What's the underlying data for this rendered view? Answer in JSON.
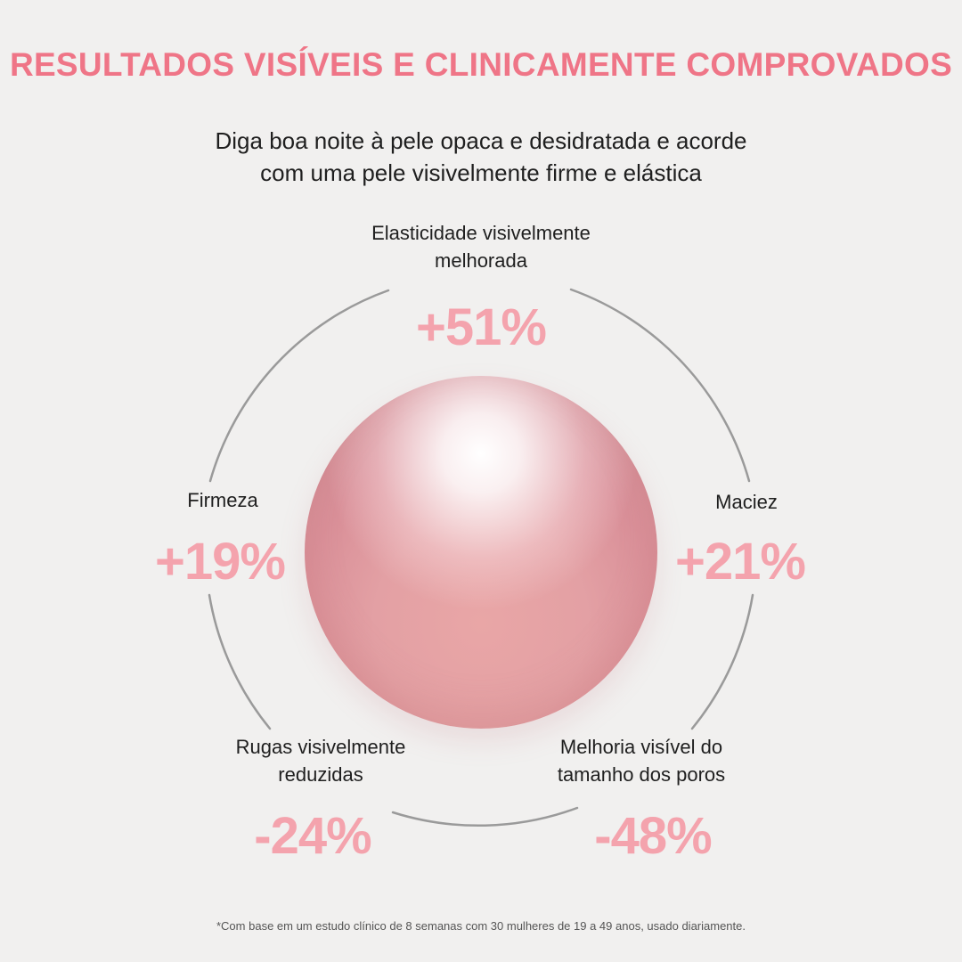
{
  "heading": {
    "title": "RESULTADOS VISÍVEIS E CLINICAMENTE COMPROVADOS",
    "subtitle_line1": "Diga boa noite à pele opaca e desidratada e acorde",
    "subtitle_line2": "com uma pele visivelmente firme e elástica"
  },
  "results": {
    "elasticity": {
      "label_line1": "Elasticidade visivelmente",
      "label_line2": "melhorada",
      "value": "+51%"
    },
    "firmness": {
      "label": "Firmeza",
      "value": "+19%"
    },
    "softness": {
      "label": "Maciez",
      "value": "+21%"
    },
    "wrinkles": {
      "label_line1": "Rugas visivelmente",
      "label_line2": "reduzidas",
      "value": "-24%"
    },
    "pores": {
      "label_line1": "Melhoria visível do",
      "label_line2": "tamanho dos poros",
      "value": "-48%"
    }
  },
  "footnote": "*Com base em um estudo clínico de 8 semanas com 30 mulheres de 19 a 49 anos, usado diariamente.",
  "colors": {
    "title": "#ef7587",
    "value": "#f4a3ad",
    "ring": "#9a9a9a",
    "background": "#f1f0ef"
  }
}
